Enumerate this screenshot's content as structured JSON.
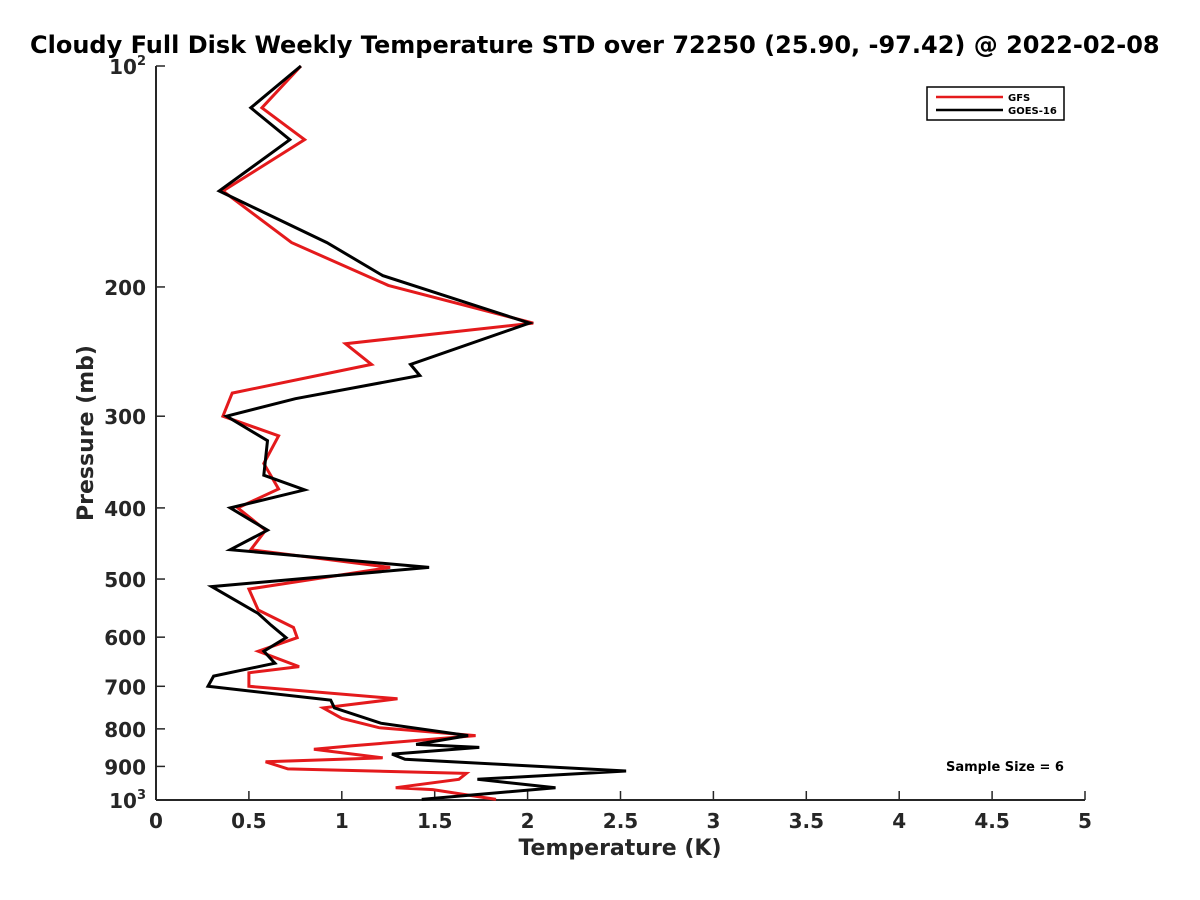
{
  "chart_data": {
    "type": "line",
    "title": "Cloudy Full Disk Weekly Temperature STD over 72250 (25.90, -97.42) @ 2022-02-08",
    "xlabel": "Temperature (K)",
    "ylabel": "Pressure (mb)",
    "xlim": [
      0,
      5
    ],
    "ylim": [
      100,
      1000
    ],
    "yscale": "log",
    "y_reversed": true,
    "grid": false,
    "legend_position": "top-right",
    "x_ticks": [
      "0",
      "0.5",
      "1",
      "1.5",
      "2",
      "2.5",
      "3",
      "3.5",
      "4",
      "4.5",
      "5"
    ],
    "y_ticks": [
      {
        "value": 100,
        "base": "10",
        "exp": "2"
      },
      {
        "value": 200,
        "label": "200"
      },
      {
        "value": 300,
        "label": "300"
      },
      {
        "value": 400,
        "label": "400"
      },
      {
        "value": 500,
        "label": "500"
      },
      {
        "value": 600,
        "label": "600"
      },
      {
        "value": 700,
        "label": "700"
      },
      {
        "value": 800,
        "label": "800"
      },
      {
        "value": 900,
        "label": "900"
      },
      {
        "value": 1000,
        "base": "10",
        "exp": "3"
      }
    ],
    "annotation": "Sample Size = 6",
    "series": [
      {
        "name": "GFS",
        "color": "#e41a1c",
        "points": [
          [
            0.78,
            100
          ],
          [
            0.57,
            114
          ],
          [
            0.8,
            126
          ],
          [
            0.36,
            148
          ],
          [
            0.73,
            174
          ],
          [
            1.25,
            199
          ],
          [
            2.03,
            224
          ],
          [
            1.02,
            239
          ],
          [
            1.16,
            255
          ],
          [
            0.41,
            279
          ],
          [
            0.36,
            300
          ],
          [
            0.66,
            319
          ],
          [
            0.58,
            348
          ],
          [
            0.66,
            377
          ],
          [
            0.44,
            400
          ],
          [
            0.59,
            429
          ],
          [
            0.51,
            456
          ],
          [
            1.26,
            482
          ],
          [
            0.5,
            516
          ],
          [
            0.55,
            551
          ],
          [
            0.74,
            582
          ],
          [
            0.76,
            601
          ],
          [
            0.55,
            627
          ],
          [
            0.77,
            658
          ],
          [
            0.5,
            671
          ],
          [
            0.5,
            700
          ],
          [
            1.3,
            728
          ],
          [
            0.9,
            749
          ],
          [
            1.0,
            774
          ],
          [
            1.2,
            797
          ],
          [
            1.72,
            817
          ],
          [
            1.05,
            844
          ],
          [
            0.85,
            853
          ],
          [
            1.22,
            876
          ],
          [
            0.59,
            887
          ],
          [
            0.71,
            907
          ],
          [
            1.67,
            920
          ],
          [
            1.63,
            937
          ],
          [
            1.29,
            962
          ],
          [
            1.49,
            968
          ],
          [
            1.83,
            998
          ]
        ]
      },
      {
        "name": "GOES-16",
        "color": "#000000",
        "points": [
          [
            0.78,
            100
          ],
          [
            0.51,
            114
          ],
          [
            0.72,
            126
          ],
          [
            0.34,
            148
          ],
          [
            0.92,
            174
          ],
          [
            1.22,
            193
          ],
          [
            2.01,
            224
          ],
          [
            1.37,
            255
          ],
          [
            1.42,
            264
          ],
          [
            0.75,
            284
          ],
          [
            0.38,
            300
          ],
          [
            0.6,
            324
          ],
          [
            0.58,
            361
          ],
          [
            0.8,
            378
          ],
          [
            0.4,
            400
          ],
          [
            0.6,
            429
          ],
          [
            0.4,
            456
          ],
          [
            1.47,
            482
          ],
          [
            0.3,
            512
          ],
          [
            0.55,
            557
          ],
          [
            0.62,
            578
          ],
          [
            0.7,
            601
          ],
          [
            0.58,
            627
          ],
          [
            0.64,
            651
          ],
          [
            0.31,
            678
          ],
          [
            0.28,
            700
          ],
          [
            0.94,
            731
          ],
          [
            0.96,
            749
          ],
          [
            1.21,
            786
          ],
          [
            1.68,
            817
          ],
          [
            1.4,
            840
          ],
          [
            1.74,
            848
          ],
          [
            1.27,
            866
          ],
          [
            1.34,
            880
          ],
          [
            2.53,
            913
          ],
          [
            1.73,
            937
          ],
          [
            2.15,
            962
          ],
          [
            1.43,
            998
          ]
        ]
      }
    ]
  }
}
